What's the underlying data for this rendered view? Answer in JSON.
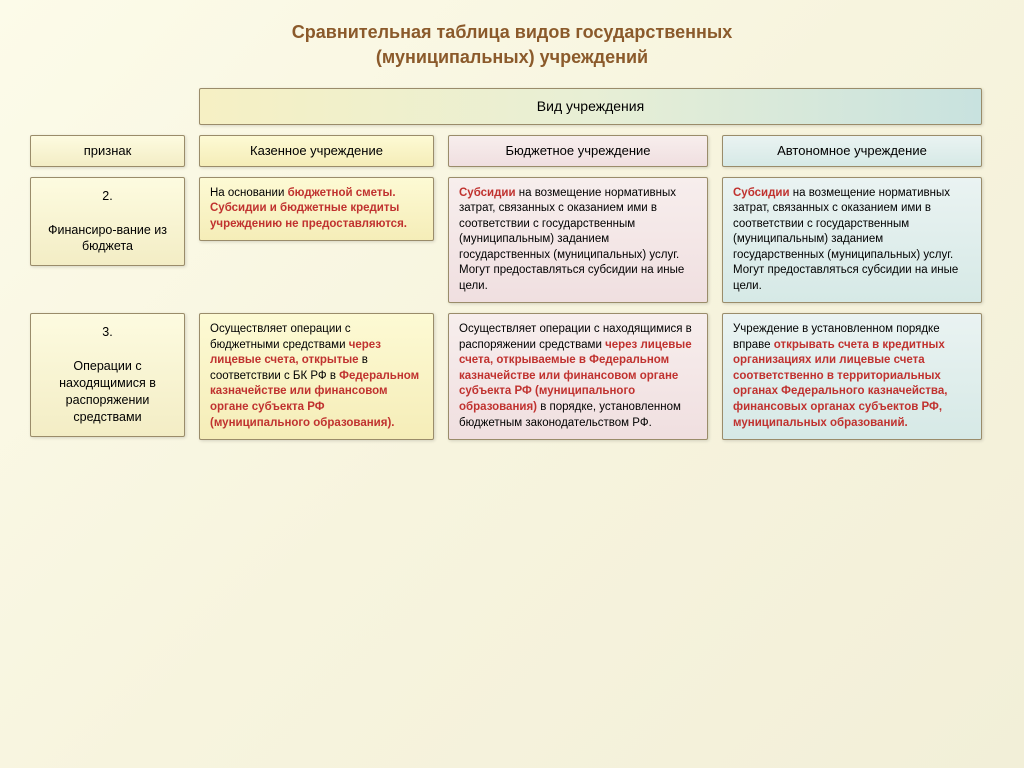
{
  "title_line1": "Сравнительная таблица видов государственных",
  "title_line2": "(муниципальных) учреждений",
  "header_span": "Вид учреждения",
  "col_attr": "признак",
  "cols": [
    "Казенное учреждение",
    "Бюджетное учреждение",
    "Автономное учреждение"
  ],
  "rows": [
    {
      "num": "2.",
      "label": "Финансиро-вание из бюджета",
      "cells": [
        {
          "pre": "На основании ",
          "hl1": "бюджетной сметы. Субсидии и бюджетные кредиты учреждению не предоставляются.",
          "post": ""
        },
        {
          "pre": "",
          "hl1": "Субсидии",
          "mid": " на возмещение нормативных затрат, связанных с оказанием ими в соответствии с государственным (муниципальным) заданием государственных (муниципальных) услуг.  Могут предоставляться субсидии на иные цели.",
          "post": ""
        },
        {
          "pre": "",
          "hl1": "Субсидии",
          "mid": "  на возмещение нормативных затрат, связанных с оказанием ими в соответствии с государственным (муниципальным) заданием государственных (муниципальных) услуг.  Могут предоставляться субсидии на иные цели.",
          "post": ""
        }
      ]
    },
    {
      "num": "3.",
      "label": "Операции с находящимися в распоряжении средствами",
      "cells": [
        {
          "pre": "Осуществляет операции с бюджетными средствами ",
          "hl1": "через лицевые счета, открытые",
          "mid": " в соответствии с БК РФ в ",
          "hl2": "Федеральном казначействе или финансовом органе субъекта РФ (муниципального образования).",
          "post": ""
        },
        {
          "pre": "Осуществляет операции с находящимися в распоряжении средствами ",
          "hl1": "через лицевые счета, открываемые в Федеральном казначействе или финансовом органе субъекта РФ (муниципального образования)",
          "mid": " в порядке, установленном бюджетным законодательством РФ.",
          "post": ""
        },
        {
          "pre": "Учреждение в установленном порядке вправе ",
          "hl1": "открывать счета в кредитных организациях или лицевые счета соответственно в территориальных органах Федерального казначейства, финансовых органах субъектов РФ, муниципальных образований.",
          "post": ""
        }
      ]
    }
  ],
  "colors": {
    "title": "#8b5a2b",
    "highlight": "#c0322f",
    "border": "#9a8c6a"
  }
}
